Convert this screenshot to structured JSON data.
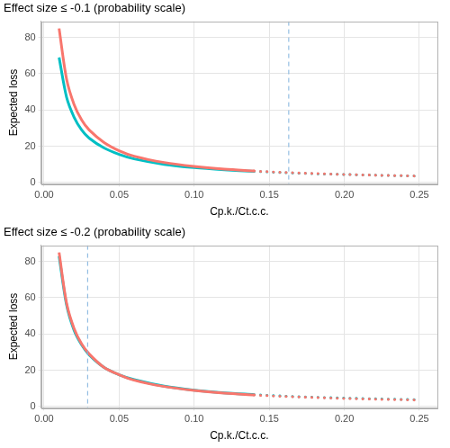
{
  "chart_data": [
    {
      "type": "line",
      "title": "Effect size ≤ -0.1 (probability scale)",
      "x_label": "Cp.k./Ct.c.c.",
      "y_label": "Expected loss",
      "x": [
        0.01,
        0.015,
        0.02,
        0.025,
        0.03,
        0.04,
        0.05,
        0.06,
        0.08,
        0.1,
        0.12,
        0.14,
        0.16,
        0.18,
        0.2,
        0.22,
        0.25
      ],
      "series": [
        {
          "color": "#F8766D",
          "line_style": "solid",
          "values": [
            85,
            57,
            43,
            34.5,
            29,
            22,
            17.5,
            14.5,
            11,
            8.8,
            7.3,
            6.3,
            null,
            null,
            null,
            null,
            null
          ]
        },
        {
          "color": "#F8766D",
          "line_style": "dotted",
          "values": [
            null,
            null,
            null,
            null,
            null,
            null,
            null,
            null,
            null,
            null,
            null,
            6.3,
            5.5,
            4.9,
            4.4,
            4.0,
            3.5
          ]
        },
        {
          "color": "#00BFC4",
          "line_style": "solid",
          "values": [
            69,
            47,
            36,
            29,
            24.5,
            19,
            15.5,
            13,
            10,
            8.2,
            7,
            6.1,
            null,
            null,
            null,
            null,
            null
          ]
        },
        {
          "color": "#00BFC4",
          "line_style": "dotted",
          "values": [
            null,
            null,
            null,
            null,
            null,
            null,
            null,
            null,
            null,
            null,
            null,
            6.1,
            5.4,
            4.8,
            4.4,
            4.0,
            3.5
          ]
        }
      ],
      "xlim": [
        -0.002,
        0.262
      ],
      "ylim": [
        -0.8,
        89
      ],
      "xticks": [
        {
          "value": 0,
          "label": "0.00"
        },
        0.05,
        {
          "value": 0.1,
          "label": "0.10"
        },
        0.15,
        {
          "value": 0.2,
          "label": "0.20"
        },
        0.25
      ],
      "yticks": [
        0,
        20,
        40,
        60,
        80
      ],
      "grid": true,
      "reference_line": {
        "value": 0.163,
        "color": "#7FB2DD",
        "line_style": "dashed"
      }
    },
    {
      "type": "line",
      "title": "Effect size ≤ -0.2 (probability scale)",
      "x_label": "Cp.k./Ct.c.c.",
      "y_label": "Expected loss",
      "x": [
        0.01,
        0.015,
        0.02,
        0.025,
        0.03,
        0.04,
        0.05,
        0.06,
        0.08,
        0.1,
        0.12,
        0.14,
        0.16,
        0.18,
        0.2,
        0.22,
        0.25
      ],
      "series": [
        {
          "color": "#F8766D",
          "line_style": "solid",
          "values": [
            85,
            57,
            43,
            34.5,
            29,
            21.5,
            17.5,
            14.5,
            11,
            8.8,
            7.3,
            6.3,
            null,
            null,
            null,
            null,
            null
          ]
        },
        {
          "color": "#F8766D",
          "line_style": "dotted",
          "values": [
            null,
            null,
            null,
            null,
            null,
            null,
            null,
            null,
            null,
            null,
            null,
            6.3,
            5.5,
            4.9,
            4.4,
            4.0,
            3.5
          ]
        },
        {
          "color": "#00BFC4",
          "line_style": "solid",
          "values": [
            83,
            56,
            42,
            34,
            28.5,
            21.5,
            17.5,
            14.8,
            11.2,
            9,
            7.5,
            6.5,
            null,
            null,
            null,
            null,
            null
          ]
        },
        {
          "color": "#00BFC4",
          "line_style": "dotted",
          "values": [
            null,
            null,
            null,
            null,
            null,
            null,
            null,
            null,
            null,
            null,
            null,
            6.5,
            5.7,
            5.1,
            4.6,
            4.2,
            3.7
          ]
        }
      ],
      "xlim": [
        -0.002,
        0.262
      ],
      "ylim": [
        -0.8,
        89
      ],
      "xticks": [
        {
          "value": 0,
          "label": "0.00"
        },
        0.05,
        {
          "value": 0.1,
          "label": "0.10"
        },
        0.15,
        {
          "value": 0.2,
          "label": "0.20"
        },
        0.25
      ],
      "yticks": [
        0,
        20,
        40,
        60,
        80
      ],
      "grid": true,
      "reference_line": {
        "value": 0.029,
        "color": "#7FB2DD",
        "line_style": "dashed"
      }
    }
  ]
}
